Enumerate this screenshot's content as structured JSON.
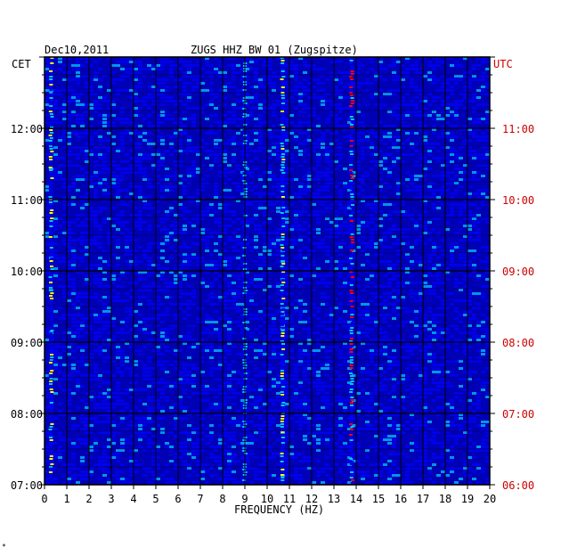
{
  "header": {
    "date": "Dec10,2011",
    "station": "ZUGS HHZ BW 01 (Zugspitze)",
    "left_zone": "CET",
    "right_zone": "UTC"
  },
  "colors": {
    "background": "#0000b4",
    "grid": "#000000",
    "utc_text": "#cc0000",
    "low": "#0000ff",
    "mid": "#00c8ff",
    "high": "#ffff00",
    "peak": "#ff0000"
  },
  "chart_data": {
    "type": "heatmap",
    "title": "ZUGS HHZ BW 01 (Zugspitze)",
    "date": "Dec10,2011",
    "xlabel": "FREQUENCY (HZ)",
    "xlim": [
      0,
      20
    ],
    "x_ticks": [
      "0",
      "1",
      "2",
      "3",
      "4",
      "5",
      "6",
      "7",
      "8",
      "9",
      "10",
      "11",
      "12",
      "13",
      "14",
      "15",
      "16",
      "17",
      "18",
      "19",
      "20"
    ],
    "ylim_cet_hours": [
      7,
      13
    ],
    "y_ticks_cet": [
      "07:00",
      "08:00",
      "09:00",
      "10:00",
      "11:00",
      "12:00"
    ],
    "y_ticks_utc": [
      "06:00",
      "07:00",
      "08:00",
      "09:00",
      "10:00",
      "11:00"
    ],
    "features": [
      {
        "frequency_hz": 0.3,
        "intensity": "high"
      },
      {
        "frequency_hz": 9.0,
        "intensity": "medium"
      },
      {
        "frequency_hz": 10.7,
        "intensity": "high"
      },
      {
        "frequency_hz": 13.8,
        "intensity": "peak"
      }
    ],
    "grid": true
  },
  "footer": {
    "mark": "*"
  }
}
